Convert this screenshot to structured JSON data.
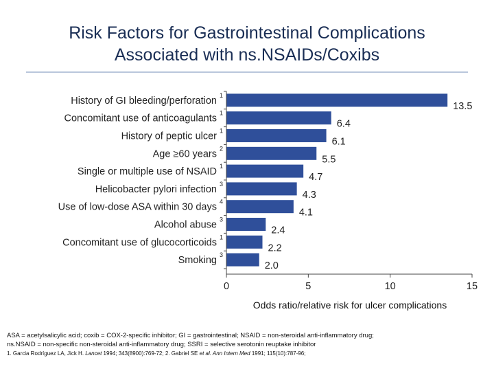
{
  "title_lines": [
    "Risk Factors for Gastrointestinal Complications",
    "Associated with ns.NSAIDs/Coxibs"
  ],
  "chart_data": {
    "type": "bar",
    "orientation": "horizontal",
    "categories": [
      "History of GI bleeding/perforation",
      "Concomitant use of anticoagulants",
      "History of peptic ulcer",
      "Age ≥60 years",
      "Single or multiple use of NSAID",
      "Helicobacter pylori infection",
      "Use of low-dose ASA within 30 days",
      "Alcohol abuse",
      "Concomitant use of glucocorticoids",
      "Smoking"
    ],
    "refs": [
      "1",
      "1",
      "1",
      "2",
      "1",
      "3",
      "4",
      "3",
      "1",
      "3"
    ],
    "values": [
      13.5,
      6.4,
      6.1,
      5.5,
      4.7,
      4.3,
      4.1,
      2.4,
      2.2,
      2.0
    ],
    "value_labels": [
      "13.5",
      "6.4",
      "6.1",
      "5.5",
      "4.7",
      "4.3",
      "4.1",
      "2.4",
      "2.2",
      "2.0"
    ],
    "xticks": [
      0,
      5,
      10,
      15
    ],
    "xlim": [
      0,
      15
    ],
    "xlabel": "Odds ratio/relative risk for ulcer complications",
    "bar_color": "#2f4f9a"
  },
  "footnotes": {
    "line1": "ASA = acetylsalicylic acid; coxib = COX-2-specific inhibitor; GI = gastrointestinal; NSAID = non-steroidal anti-inflammatory drug;",
    "line2": "ns.NSAID = non-specific non-steroidal anti-inflammatory drug; SSRI = selective serotonin reuptake inhibitor",
    "ref_prefix": "1. Garcia Rodríguez LA, Jick H. ",
    "ref_journal1": "Lancet",
    "ref_middle": " 1994; 343(8900):769-72; 2. Gabriel SE ",
    "ref_etal": "et al. Ann Intern Med",
    "ref_suffix": " 1991; 115(10):787-96;"
  }
}
